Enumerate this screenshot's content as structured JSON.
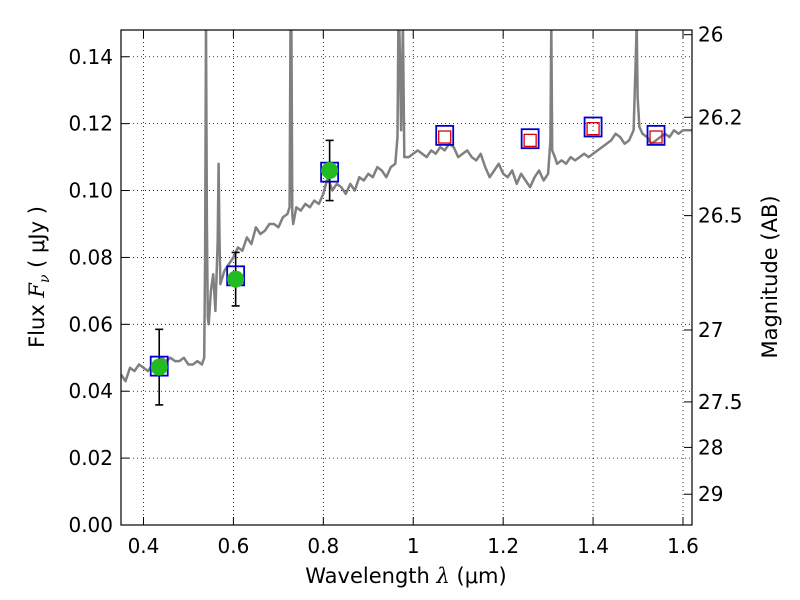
{
  "chart_data": {
    "type": "scatter",
    "xlabel": "Wavelength  λ (μm)",
    "ylabel_left": "Flux  Fν  ( μJy )",
    "ylabel_parts": {
      "prefix": "Flux  ",
      "symbol": "F",
      "subscript": "ν",
      "unit": "  ( μJy )"
    },
    "xlabel_parts": {
      "prefix": "Wavelength  ",
      "symbol": "λ",
      "unit": " (μm)"
    },
    "ylabel_right": "Magnitude (AB)",
    "xlim": [
      0.35,
      1.62
    ],
    "ylim": [
      0.0,
      0.148
    ],
    "grid": "dotted",
    "x_ticks": [
      0.4,
      0.6,
      0.8,
      1.0,
      1.2,
      1.4,
      1.6
    ],
    "x_tick_labels": [
      "0.4",
      "0.6",
      "0.8",
      "1",
      "1.2",
      "1.4",
      "1.6"
    ],
    "y_ticks": [
      0.0,
      0.02,
      0.04,
      0.06,
      0.08,
      0.1,
      0.12,
      0.14
    ],
    "y_tick_labels": [
      "0.00",
      "0.02",
      "0.04",
      "0.06",
      "0.08",
      "0.10",
      "0.12",
      "0.14"
    ],
    "right_ticks": [
      {
        "label": "26",
        "flux": 0.1466
      },
      {
        "label": "26.2",
        "flux": 0.1219
      },
      {
        "label": "26.5",
        "flux": 0.0925
      },
      {
        "label": "27",
        "flux": 0.0583
      },
      {
        "label": "27.5",
        "flux": 0.0368
      },
      {
        "label": "28",
        "flux": 0.0232
      },
      {
        "label": "29",
        "flux": 0.0092
      }
    ],
    "colors": {
      "model": "#808080",
      "observed": "#22bb22",
      "model_band": "#0000cc",
      "upper_limit": "#dd0000",
      "errorbar": "#000000"
    },
    "series": [
      {
        "name": "model-spectrum",
        "type": "line",
        "x": [
          0.35,
          0.36,
          0.37,
          0.38,
          0.39,
          0.4,
          0.41,
          0.42,
          0.43,
          0.44,
          0.45,
          0.46,
          0.47,
          0.48,
          0.49,
          0.5,
          0.51,
          0.52,
          0.53,
          0.535,
          0.537,
          0.539,
          0.541,
          0.543,
          0.545,
          0.55,
          0.555,
          0.56,
          0.565,
          0.567,
          0.569,
          0.571,
          0.58,
          0.59,
          0.6,
          0.61,
          0.62,
          0.63,
          0.64,
          0.65,
          0.66,
          0.67,
          0.68,
          0.69,
          0.7,
          0.71,
          0.72,
          0.725,
          0.727,
          0.729,
          0.731,
          0.733,
          0.74,
          0.75,
          0.76,
          0.77,
          0.78,
          0.79,
          0.8,
          0.81,
          0.82,
          0.83,
          0.84,
          0.85,
          0.86,
          0.87,
          0.88,
          0.89,
          0.9,
          0.91,
          0.92,
          0.93,
          0.94,
          0.95,
          0.96,
          0.965,
          0.967,
          0.969,
          0.973,
          0.977,
          0.98,
          0.99,
          1.0,
          1.01,
          1.02,
          1.03,
          1.04,
          1.05,
          1.06,
          1.07,
          1.08,
          1.09,
          1.1,
          1.11,
          1.12,
          1.13,
          1.14,
          1.15,
          1.16,
          1.17,
          1.18,
          1.19,
          1.2,
          1.21,
          1.22,
          1.23,
          1.24,
          1.25,
          1.26,
          1.27,
          1.28,
          1.29,
          1.3,
          1.305,
          1.307,
          1.309,
          1.315,
          1.32,
          1.33,
          1.34,
          1.35,
          1.36,
          1.37,
          1.38,
          1.39,
          1.4,
          1.41,
          1.42,
          1.43,
          1.44,
          1.45,
          1.46,
          1.47,
          1.48,
          1.49,
          1.495,
          1.497,
          1.499,
          1.503,
          1.51,
          1.52,
          1.53,
          1.54,
          1.55,
          1.56,
          1.57,
          1.58,
          1.59,
          1.6,
          1.61,
          1.62
        ],
        "y": [
          0.045,
          0.043,
          0.047,
          0.046,
          0.048,
          0.047,
          0.046,
          0.048,
          0.049,
          0.05,
          0.049,
          0.05,
          0.049,
          0.049,
          0.05,
          0.048,
          0.048,
          0.049,
          0.048,
          0.05,
          0.08,
          0.15,
          0.09,
          0.062,
          0.06,
          0.07,
          0.075,
          0.064,
          0.085,
          0.108,
          0.086,
          0.072,
          0.076,
          0.078,
          0.08,
          0.083,
          0.082,
          0.086,
          0.084,
          0.089,
          0.087,
          0.088,
          0.09,
          0.09,
          0.089,
          0.092,
          0.093,
          0.095,
          0.15,
          0.15,
          0.093,
          0.09,
          0.095,
          0.094,
          0.096,
          0.095,
          0.097,
          0.096,
          0.099,
          0.104,
          0.1,
          0.102,
          0.101,
          0.099,
          0.102,
          0.1,
          0.104,
          0.103,
          0.105,
          0.104,
          0.107,
          0.106,
          0.104,
          0.107,
          0.108,
          0.116,
          0.15,
          0.15,
          0.118,
          0.15,
          0.11,
          0.11,
          0.111,
          0.112,
          0.111,
          0.11,
          0.112,
          0.111,
          0.113,
          0.112,
          0.114,
          0.113,
          0.11,
          0.111,
          0.112,
          0.11,
          0.109,
          0.111,
          0.107,
          0.104,
          0.106,
          0.108,
          0.105,
          0.104,
          0.106,
          0.102,
          0.105,
          0.103,
          0.101,
          0.104,
          0.106,
          0.103,
          0.105,
          0.115,
          0.15,
          0.112,
          0.11,
          0.108,
          0.109,
          0.108,
          0.11,
          0.109,
          0.11,
          0.111,
          0.11,
          0.111,
          0.112,
          0.113,
          0.114,
          0.115,
          0.117,
          0.116,
          0.114,
          0.115,
          0.118,
          0.14,
          0.15,
          0.128,
          0.119,
          0.117,
          0.116,
          0.114,
          0.115,
          0.116,
          0.117,
          0.116,
          0.118,
          0.117,
          0.118,
          0.118,
          0.118
        ]
      },
      {
        "name": "observed-photometry",
        "type": "scatter",
        "x": [
          0.435,
          0.605,
          0.814
        ],
        "y": [
          0.0472,
          0.0735,
          0.106
        ],
        "y_err": [
          0.0113,
          0.008,
          0.009
        ]
      },
      {
        "name": "model-band-flux",
        "type": "scatter",
        "x": [
          0.435,
          0.605,
          0.814,
          1.07,
          1.26,
          1.4,
          1.54
        ],
        "y": [
          0.0475,
          0.0745,
          0.1055,
          0.1165,
          0.1155,
          0.119,
          0.1165
        ]
      },
      {
        "name": "upper-limits",
        "type": "scatter",
        "x": [
          1.07,
          1.26,
          1.4,
          1.54
        ],
        "y": [
          0.116,
          0.115,
          0.1185,
          0.116
        ]
      }
    ]
  }
}
